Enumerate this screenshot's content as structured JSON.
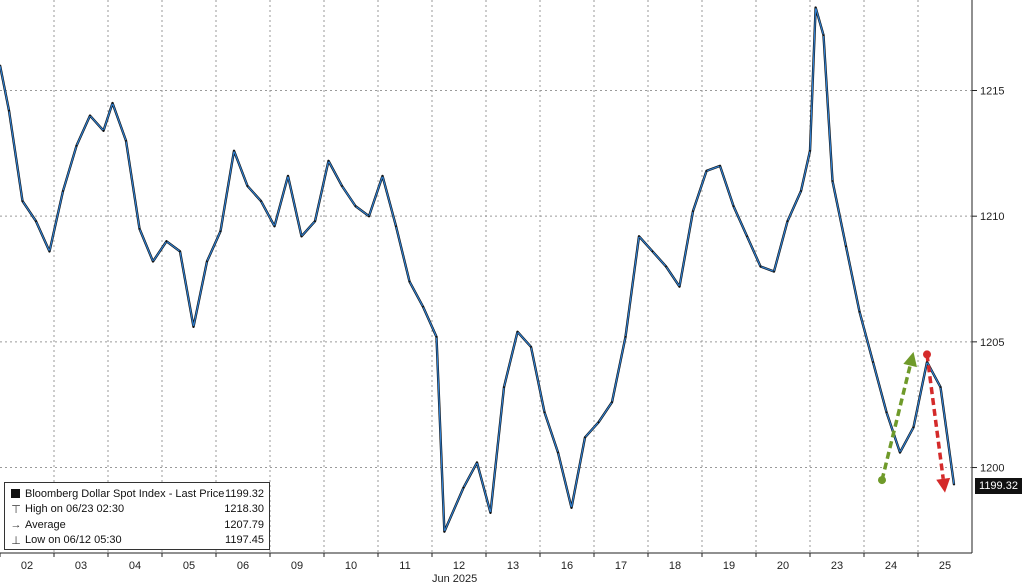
{
  "chart_data": {
    "type": "line",
    "title": "",
    "xlabel": "Jun 2025",
    "ylabel": "",
    "ylim": [
      1196.6,
      1218.6
    ],
    "y_ticks": [
      1200,
      1205,
      1210,
      1215
    ],
    "y_tick_labels": [
      "1200",
      "1205",
      "1210",
      "1215"
    ],
    "x_tick_labels": [
      "02",
      "03",
      "04",
      "05",
      "06",
      "09",
      "10",
      "11",
      "12",
      "13",
      "16",
      "17",
      "18",
      "19",
      "20",
      "23",
      "24",
      "25"
    ],
    "grid": true,
    "series": [
      {
        "name": "Bloomberg Dollar Spot Index - Last Price",
        "color": "#2f7fd0",
        "points": [
          [
            "06-02 00:00",
            1216.0
          ],
          [
            "06-02 04:00",
            1214.2
          ],
          [
            "06-02 10:00",
            1210.6
          ],
          [
            "06-02 16:00",
            1209.8
          ],
          [
            "06-02 22:00",
            1208.6
          ],
          [
            "06-03 04:00",
            1211.0
          ],
          [
            "06-03 10:00",
            1212.8
          ],
          [
            "06-03 16:00",
            1214.0
          ],
          [
            "06-03 22:00",
            1213.4
          ],
          [
            "06-04 02:00",
            1214.5
          ],
          [
            "06-04 08:00",
            1213.0
          ],
          [
            "06-04 14:00",
            1209.5
          ],
          [
            "06-04 20:00",
            1208.2
          ],
          [
            "06-05 02:00",
            1209.0
          ],
          [
            "06-05 08:00",
            1208.6
          ],
          [
            "06-05 14:00",
            1205.6
          ],
          [
            "06-05 20:00",
            1208.2
          ],
          [
            "06-06 02:00",
            1209.4
          ],
          [
            "06-06 08:00",
            1212.6
          ],
          [
            "06-06 14:00",
            1211.2
          ],
          [
            "06-06 20:00",
            1210.6
          ],
          [
            "06-09 02:00",
            1209.6
          ],
          [
            "06-09 08:00",
            1211.6
          ],
          [
            "06-09 14:00",
            1209.2
          ],
          [
            "06-09 20:00",
            1209.8
          ],
          [
            "06-10 02:00",
            1212.2
          ],
          [
            "06-10 08:00",
            1211.2
          ],
          [
            "06-10 14:00",
            1210.4
          ],
          [
            "06-10 20:00",
            1210.0
          ],
          [
            "06-11 02:00",
            1211.6
          ],
          [
            "06-11 08:00",
            1209.6
          ],
          [
            "06-11 14:00",
            1207.4
          ],
          [
            "06-11 20:00",
            1206.4
          ],
          [
            "06-12 02:00",
            1205.2
          ],
          [
            "06-12 05:30",
            1197.45
          ],
          [
            "06-12 14:00",
            1199.2
          ],
          [
            "06-12 20:00",
            1200.2
          ],
          [
            "06-13 02:00",
            1198.2
          ],
          [
            "06-13 08:00",
            1203.2
          ],
          [
            "06-13 14:00",
            1205.4
          ],
          [
            "06-13 20:00",
            1204.8
          ],
          [
            "06-16 02:00",
            1202.2
          ],
          [
            "06-16 08:00",
            1200.6
          ],
          [
            "06-16 14:00",
            1198.4
          ],
          [
            "06-16 20:00",
            1201.2
          ],
          [
            "06-17 02:00",
            1201.8
          ],
          [
            "06-17 08:00",
            1202.6
          ],
          [
            "06-17 14:00",
            1205.2
          ],
          [
            "06-17 20:00",
            1209.2
          ],
          [
            "06-18 02:00",
            1208.6
          ],
          [
            "06-18 08:00",
            1208.0
          ],
          [
            "06-18 14:00",
            1207.2
          ],
          [
            "06-18 20:00",
            1210.2
          ],
          [
            "06-19 02:00",
            1211.8
          ],
          [
            "06-19 08:00",
            1212.0
          ],
          [
            "06-19 14:00",
            1210.4
          ],
          [
            "06-19 20:00",
            1209.2
          ],
          [
            "06-20 02:00",
            1208.0
          ],
          [
            "06-20 08:00",
            1207.8
          ],
          [
            "06-20 14:00",
            1209.8
          ],
          [
            "06-20 20:00",
            1211.0
          ],
          [
            "06-23 00:00",
            1212.6
          ],
          [
            "06-23 02:30",
            1218.3
          ],
          [
            "06-23 06:00",
            1217.2
          ],
          [
            "06-23 10:00",
            1211.4
          ],
          [
            "06-23 16:00",
            1208.8
          ],
          [
            "06-23 22:00",
            1206.2
          ],
          [
            "06-24 04:00",
            1204.2
          ],
          [
            "06-24 10:00",
            1202.2
          ],
          [
            "06-24 16:00",
            1200.6
          ],
          [
            "06-24 22:00",
            1201.6
          ],
          [
            "06-25 04:00",
            1204.2
          ],
          [
            "06-25 10:00",
            1203.2
          ],
          [
            "06-25 16:00",
            1199.32
          ]
        ]
      }
    ],
    "annotations": [
      {
        "type": "arrow",
        "direction": "up",
        "color": "#6f9a2a",
        "from": [
          "06-24 08:00",
          1199.5
        ],
        "to": [
          "06-24 22:00",
          1204.6
        ]
      },
      {
        "type": "arrow",
        "direction": "down",
        "color": "#d42a2a",
        "from": [
          "06-25 04:00",
          1204.5
        ],
        "to": [
          "06-25 12:00",
          1199.0
        ]
      }
    ],
    "legend": {
      "placement": "bottom-left",
      "rows": [
        {
          "symbol": "square-icon",
          "label": "Bloomberg Dollar Spot Index - Last Price",
          "value": "1199.32"
        },
        {
          "symbol": "high-marker-icon",
          "label": "High on 06/23 02:30",
          "value": "1218.30"
        },
        {
          "symbol": "average-marker-icon",
          "label": "Average",
          "value": "1207.79"
        },
        {
          "symbol": "low-marker-icon",
          "label": "Low on 06/12 05:30",
          "value": "1197.45"
        }
      ]
    },
    "last_price_label": "1199.32"
  }
}
